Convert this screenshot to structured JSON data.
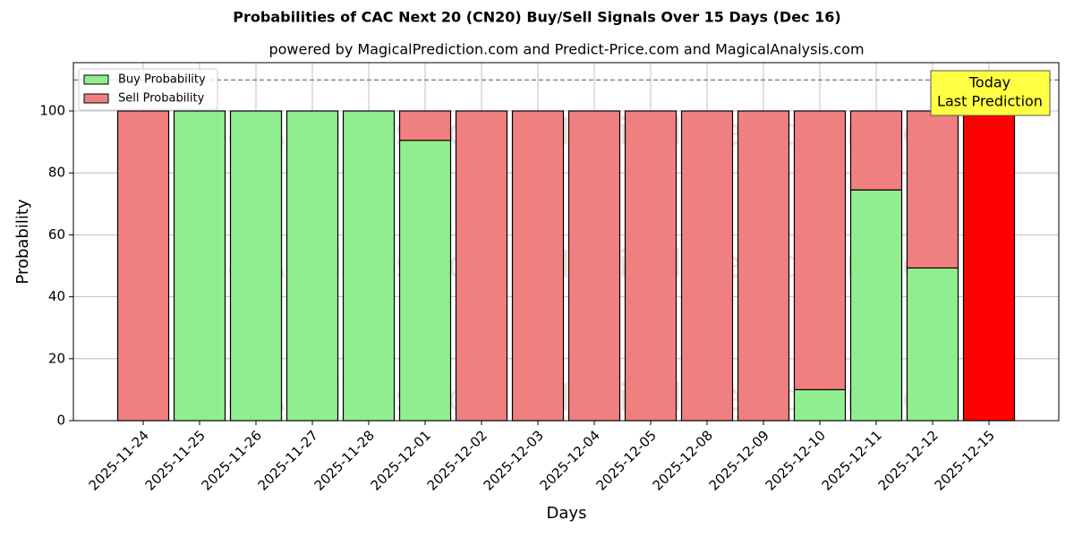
{
  "chart_data": {
    "type": "stacked_bar",
    "title": "Probabilities of CAC Next 20 (CN20) Buy/Sell Signals Over 15 Days (Dec 16)",
    "subtitle": "powered by MagicalPrediction.com and Predict-Price.com and MagicalAnalysis.com",
    "x_label": "Days",
    "y_label": "Probability",
    "categories": [
      "2025-11-24",
      "2025-11-25",
      "2025-11-26",
      "2025-11-27",
      "2025-11-28",
      "2025-12-01",
      "2025-12-02",
      "2025-12-03",
      "2025-12-04",
      "2025-12-05",
      "2025-12-08",
      "2025-12-09",
      "2025-12-10",
      "2025-12-11",
      "2025-12-12",
      "2025-12-15"
    ],
    "series": [
      {
        "name": "Buy Probability",
        "color": "#90ee90",
        "values": [
          0,
          100,
          100,
          100,
          100,
          90.5,
          0,
          0,
          0,
          0,
          0,
          0,
          10,
          74.5,
          49.3,
          0
        ]
      },
      {
        "name": "Sell Probability",
        "color": "#f08080",
        "values": [
          100,
          0,
          0,
          0,
          0,
          9.5,
          100,
          100,
          100,
          100,
          100,
          100,
          90,
          25.5,
          50.7,
          100
        ]
      }
    ],
    "today_color": "#ff0000",
    "annotation": [
      "Today",
      "Last Prediction"
    ],
    "reference_line": 110,
    "watermarks": [
      "MagicalAnalysis.com",
      "MagicalPrediction.com"
    ],
    "ylim": [
      0,
      115.6
    ],
    "yticks": [
      0,
      20,
      40,
      60,
      80,
      100
    ],
    "grid": true,
    "legend": "upper left"
  }
}
